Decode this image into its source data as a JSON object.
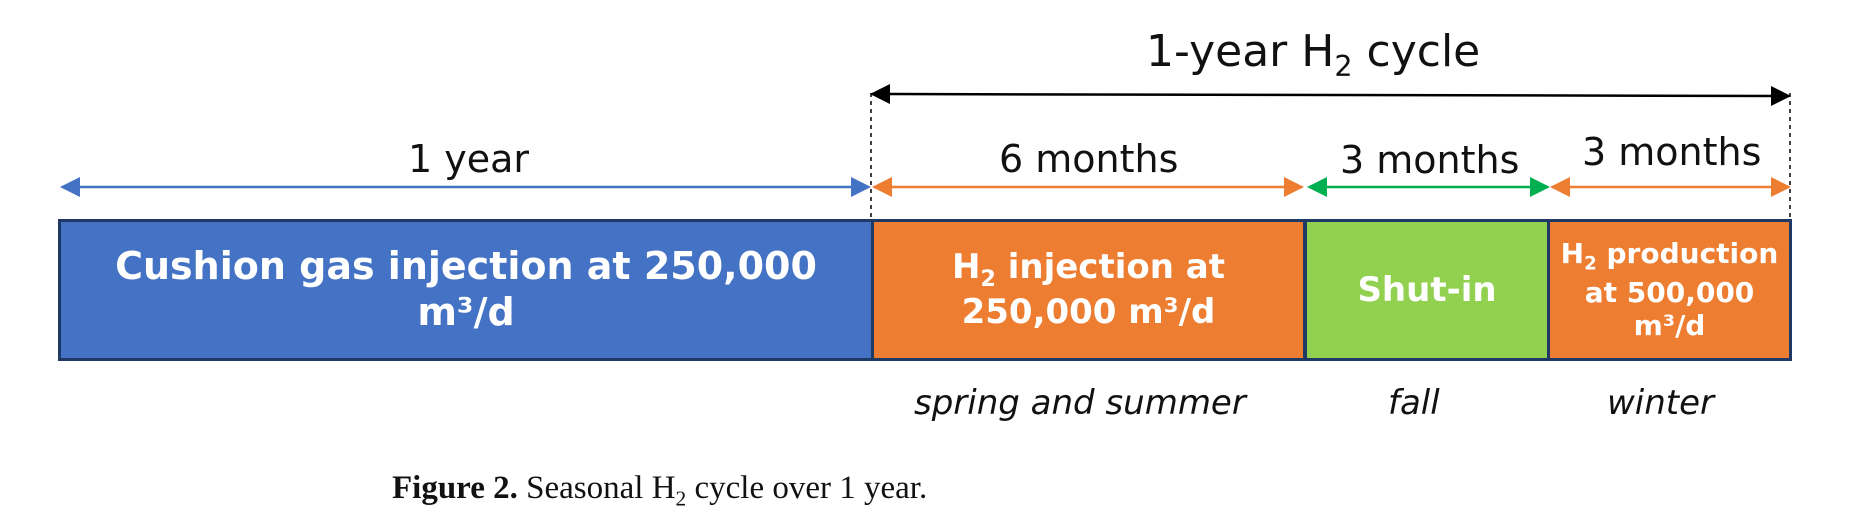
{
  "title": {
    "pre": "1-year H",
    "sub": "2",
    "post": " cycle"
  },
  "durations": {
    "cushion": "1 year",
    "injection": "6 months",
    "shutin": "3 months",
    "production": "3 months"
  },
  "boxes": {
    "cushion": {
      "text": "Cushion gas injection at 250,000 m³/d",
      "color": "#4472c4"
    },
    "injection": {
      "pre": "H",
      "sub": "2",
      "line1_post": " injection at",
      "line2": "250,000 m³/d",
      "color": "#ed7d31"
    },
    "shutin": {
      "text": "Shut-in",
      "color": "#92d050"
    },
    "production": {
      "pre": "H",
      "sub": "2",
      "line1_post": " production",
      "line2": "at 500,000",
      "line3": "m³/d",
      "color": "#ed7d31"
    }
  },
  "seasons": {
    "injection": "spring and summer",
    "shutin": "fall",
    "production": "winter"
  },
  "caption": {
    "label": "Figure 2.",
    "pre": " Seasonal H",
    "sub": "2",
    "post": " cycle over 1 year."
  },
  "colors": {
    "cycle_arrow": "#000000",
    "cushion_arrow": "#4472c4",
    "orange_arrow": "#ed7d31",
    "green_arrow": "#00b050",
    "box_border": "#1f3864"
  }
}
